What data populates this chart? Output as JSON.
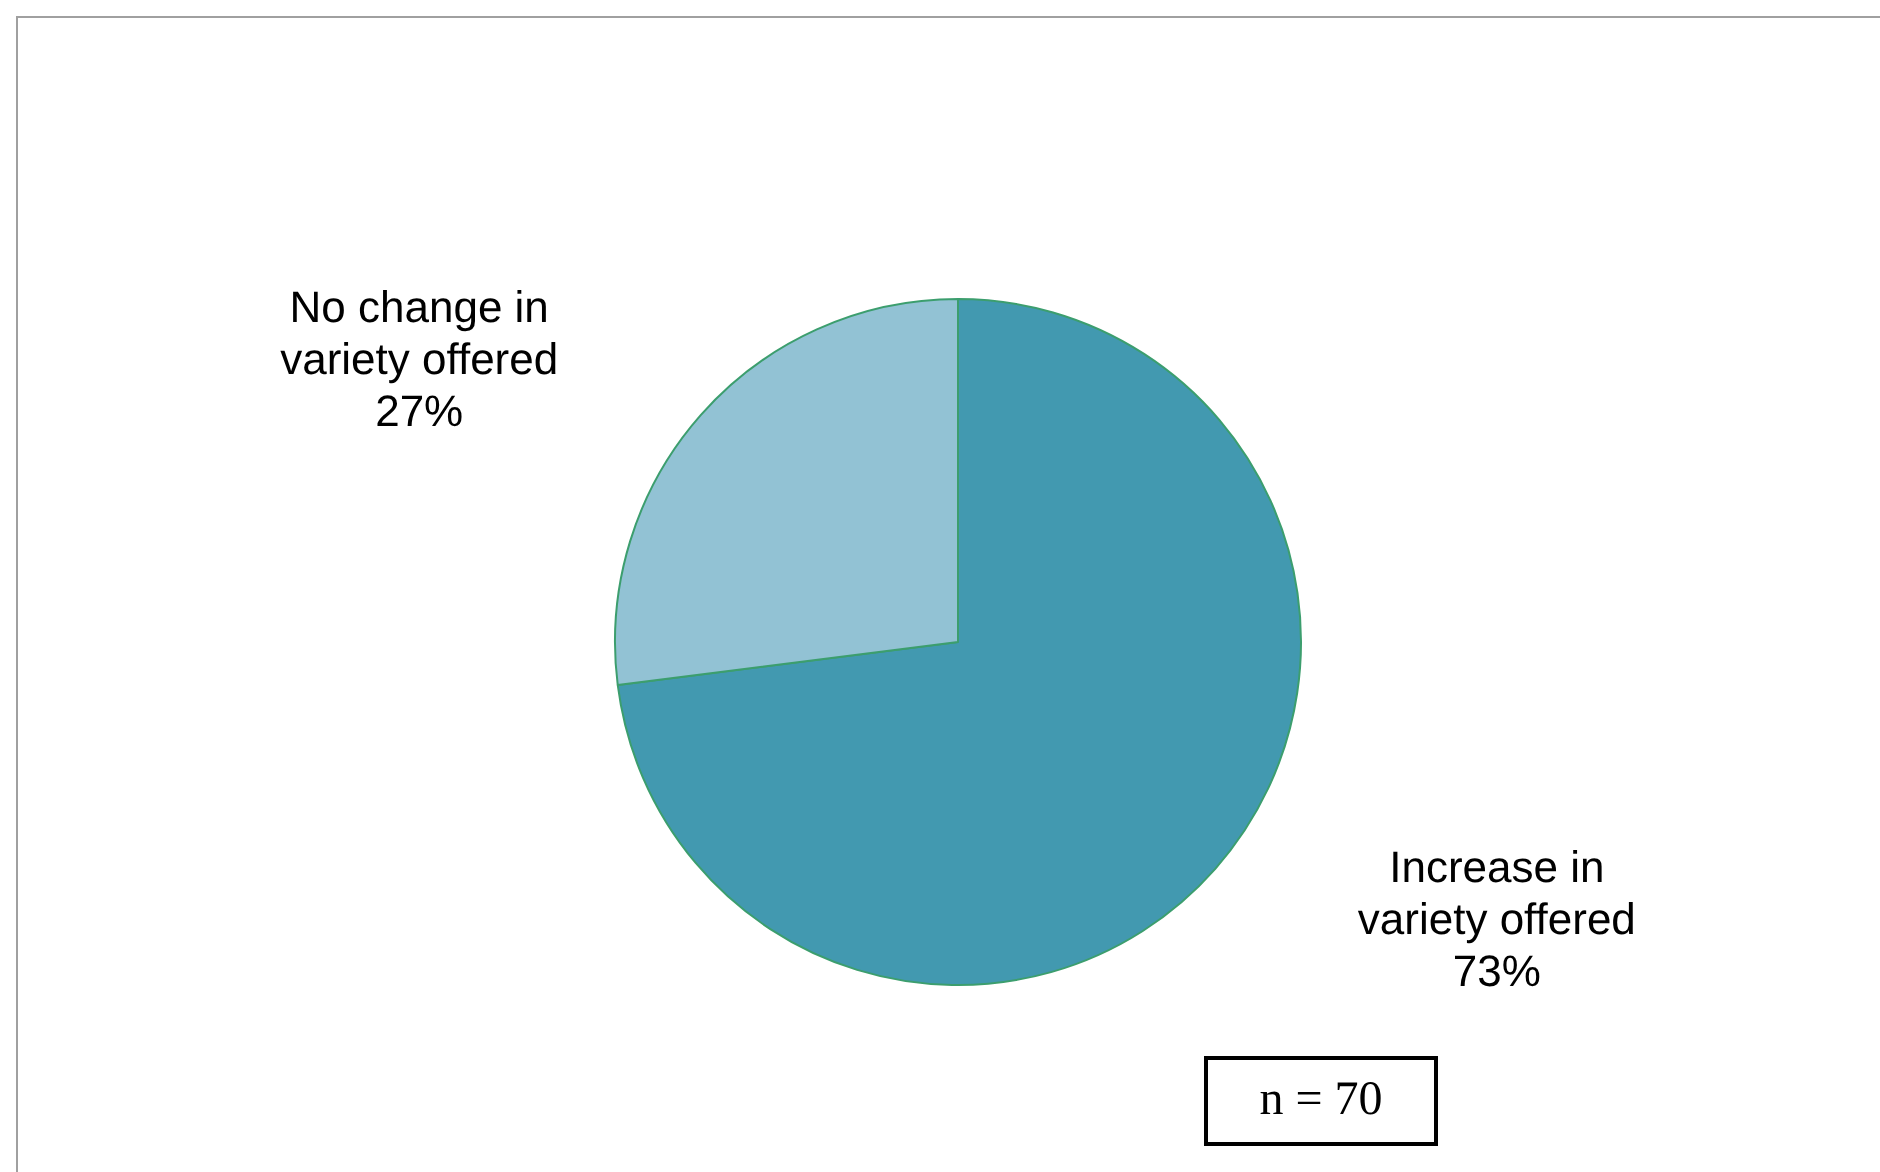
{
  "chart_data": {
    "type": "pie",
    "categories": [
      "Increase in variety offered",
      "No change in variety offered"
    ],
    "values": [
      73,
      27
    ],
    "colors": [
      "#4299b0",
      "#92c2d4"
    ],
    "value_labels": [
      "73%",
      "27%"
    ],
    "annotations": [
      "n = 70"
    ]
  }
}
